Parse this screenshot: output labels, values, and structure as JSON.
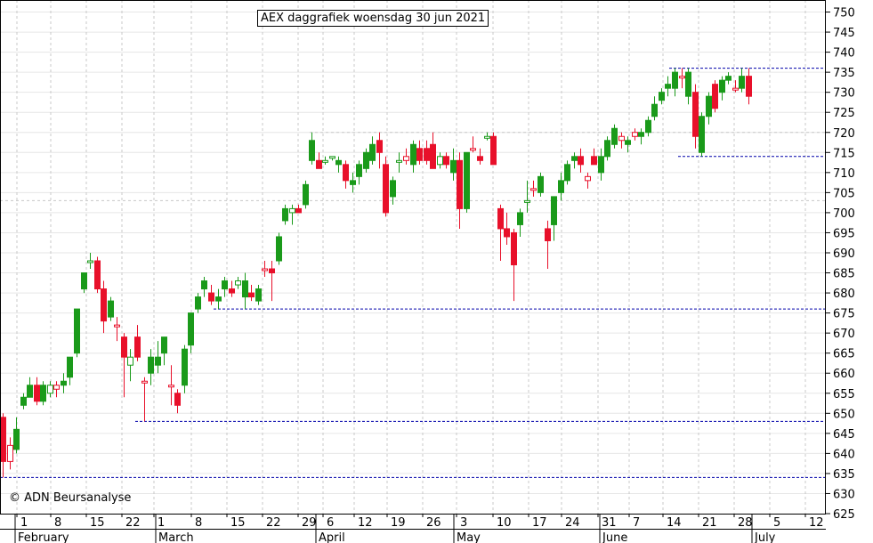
{
  "title": "AEX daggrafiek woensdag 30 jun 2021",
  "copyright": "© ADN Beursanalyse",
  "colors": {
    "up": "#1a9a1a",
    "down": "#e8102a",
    "grid": "#c8c8c8",
    "support": "#0000aa"
  },
  "chart_data": {
    "type": "candlestick",
    "title": "AEX daggrafiek woensdag 30 jun 2021",
    "ylim": [
      625,
      753
    ],
    "y_ticks": [
      625,
      630,
      635,
      640,
      645,
      650,
      655,
      660,
      665,
      670,
      675,
      680,
      685,
      690,
      695,
      700,
      705,
      710,
      715,
      720,
      725,
      730,
      735,
      740,
      745,
      750
    ],
    "x_day_ticks": [
      "1",
      "8",
      "15",
      "22",
      "1",
      "8",
      "15",
      "22",
      "29",
      "6",
      "12",
      "19",
      "26",
      "3",
      "10",
      "17",
      "24",
      "31",
      "7",
      "14",
      "21",
      "28",
      "5",
      "12"
    ],
    "months": [
      "February",
      "March",
      "April",
      "May",
      "June",
      "July"
    ],
    "candles": [
      {
        "o": 649,
        "h": 650,
        "l": 634,
        "c": 638,
        "dir": "down"
      },
      {
        "o": 638,
        "h": 644,
        "l": 636,
        "c": 642,
        "dir": "down"
      },
      {
        "o": 641,
        "h": 649,
        "l": 640,
        "c": 646,
        "dir": "up"
      },
      {
        "o": 652,
        "h": 655,
        "l": 651,
        "c": 654,
        "dir": "up"
      },
      {
        "o": 654,
        "h": 659,
        "l": 654,
        "c": 657,
        "dir": "up"
      },
      {
        "o": 657,
        "h": 659,
        "l": 652,
        "c": 653,
        "dir": "down"
      },
      {
        "o": 653,
        "h": 658,
        "l": 652,
        "c": 657,
        "dir": "up"
      },
      {
        "o": 657,
        "h": 658,
        "l": 654,
        "c": 655,
        "dir": "up"
      },
      {
        "o": 656,
        "h": 658,
        "l": 654,
        "c": 657,
        "dir": "down"
      },
      {
        "o": 657,
        "h": 660,
        "l": 655,
        "c": 658,
        "dir": "up"
      },
      {
        "o": 659,
        "h": 664,
        "l": 657,
        "c": 664,
        "dir": "up"
      },
      {
        "o": 665,
        "h": 676,
        "l": 664,
        "c": 676,
        "dir": "up"
      },
      {
        "o": 681,
        "h": 685,
        "l": 680,
        "c": 685,
        "dir": "up"
      },
      {
        "o": 688,
        "h": 690,
        "l": 686,
        "c": 688,
        "dir": "up"
      },
      {
        "o": 688,
        "h": 689,
        "l": 680,
        "c": 681,
        "dir": "down"
      },
      {
        "o": 681,
        "h": 683,
        "l": 670,
        "c": 673,
        "dir": "down"
      },
      {
        "o": 674,
        "h": 679,
        "l": 673,
        "c": 678,
        "dir": "up"
      },
      {
        "o": 672,
        "h": 674,
        "l": 668,
        "c": 672,
        "dir": "down"
      },
      {
        "o": 669,
        "h": 670,
        "l": 654,
        "c": 664,
        "dir": "down"
      },
      {
        "o": 664,
        "h": 666,
        "l": 658,
        "c": 662,
        "dir": "up"
      },
      {
        "o": 669,
        "h": 672,
        "l": 663,
        "c": 664,
        "dir": "down"
      },
      {
        "o": 658,
        "h": 659,
        "l": 648,
        "c": 658,
        "dir": "down"
      },
      {
        "o": 660,
        "h": 666,
        "l": 657,
        "c": 664,
        "dir": "up"
      },
      {
        "o": 662,
        "h": 668,
        "l": 660,
        "c": 664,
        "dir": "up"
      },
      {
        "o": 665,
        "h": 669,
        "l": 662,
        "c": 669,
        "dir": "up"
      },
      {
        "o": 657,
        "h": 662,
        "l": 652,
        "c": 657,
        "dir": "down"
      },
      {
        "o": 655,
        "h": 656,
        "l": 650,
        "c": 652,
        "dir": "down"
      },
      {
        "o": 657,
        "h": 667,
        "l": 655,
        "c": 666,
        "dir": "up"
      },
      {
        "o": 667,
        "h": 675,
        "l": 665,
        "c": 675,
        "dir": "up"
      },
      {
        "o": 676,
        "h": 680,
        "l": 675,
        "c": 679,
        "dir": "up"
      },
      {
        "o": 681,
        "h": 684,
        "l": 679,
        "c": 683,
        "dir": "up"
      },
      {
        "o": 680,
        "h": 682,
        "l": 677,
        "c": 678,
        "dir": "down"
      },
      {
        "o": 678,
        "h": 681,
        "l": 676,
        "c": 679,
        "dir": "up"
      },
      {
        "o": 681,
        "h": 684,
        "l": 679,
        "c": 683,
        "dir": "up"
      },
      {
        "o": 681,
        "h": 683,
        "l": 679,
        "c": 680,
        "dir": "down"
      },
      {
        "o": 683,
        "h": 684,
        "l": 681,
        "c": 682,
        "dir": "up"
      },
      {
        "o": 679,
        "h": 685,
        "l": 676,
        "c": 683,
        "dir": "up"
      },
      {
        "o": 680,
        "h": 682,
        "l": 678,
        "c": 679,
        "dir": "down"
      },
      {
        "o": 678,
        "h": 682,
        "l": 677,
        "c": 681,
        "dir": "up"
      },
      {
        "o": 686,
        "h": 688,
        "l": 684,
        "c": 686,
        "dir": "down"
      },
      {
        "o": 686,
        "h": 688,
        "l": 678,
        "c": 685,
        "dir": "down"
      },
      {
        "o": 688,
        "h": 695,
        "l": 687,
        "c": 694,
        "dir": "up"
      },
      {
        "o": 698,
        "h": 702,
        "l": 697,
        "c": 701,
        "dir": "up"
      },
      {
        "o": 701,
        "h": 702,
        "l": 697,
        "c": 700,
        "dir": "up"
      },
      {
        "o": 701,
        "h": 702,
        "l": 700,
        "c": 700,
        "dir": "down"
      },
      {
        "o": 702,
        "h": 708,
        "l": 701,
        "c": 707,
        "dir": "up"
      },
      {
        "o": 713,
        "h": 720,
        "l": 712,
        "c": 718,
        "dir": "up"
      },
      {
        "o": 713,
        "h": 715,
        "l": 711,
        "c": 711,
        "dir": "down"
      },
      {
        "o": 713,
        "h": 714,
        "l": 712,
        "c": 713,
        "dir": "up"
      },
      {
        "o": 714,
        "h": 714,
        "l": 713,
        "c": 714,
        "dir": "up"
      },
      {
        "o": 712,
        "h": 714,
        "l": 710,
        "c": 713,
        "dir": "up"
      },
      {
        "o": 712,
        "h": 713,
        "l": 706,
        "c": 708,
        "dir": "down"
      },
      {
        "o": 707,
        "h": 710,
        "l": 705,
        "c": 708,
        "dir": "up"
      },
      {
        "o": 709,
        "h": 713,
        "l": 707,
        "c": 712,
        "dir": "up"
      },
      {
        "o": 711,
        "h": 716,
        "l": 710,
        "c": 715,
        "dir": "up"
      },
      {
        "o": 713,
        "h": 719,
        "l": 712,
        "c": 717,
        "dir": "up"
      },
      {
        "o": 718,
        "h": 720,
        "l": 711,
        "c": 715,
        "dir": "down"
      },
      {
        "o": 712,
        "h": 714,
        "l": 699,
        "c": 700,
        "dir": "down"
      },
      {
        "o": 704,
        "h": 709,
        "l": 702,
        "c": 708,
        "dir": "up"
      },
      {
        "o": 713,
        "h": 715,
        "l": 710,
        "c": 713,
        "dir": "up"
      },
      {
        "o": 713,
        "h": 716,
        "l": 712,
        "c": 714,
        "dir": "down"
      },
      {
        "o": 712,
        "h": 718,
        "l": 710,
        "c": 717,
        "dir": "up"
      },
      {
        "o": 716,
        "h": 718,
        "l": 712,
        "c": 713,
        "dir": "down"
      },
      {
        "o": 716,
        "h": 718,
        "l": 712,
        "c": 713,
        "dir": "down"
      },
      {
        "o": 717,
        "h": 720,
        "l": 711,
        "c": 711,
        "dir": "down"
      },
      {
        "o": 714,
        "h": 715,
        "l": 711,
        "c": 712,
        "dir": "up"
      },
      {
        "o": 714,
        "h": 715,
        "l": 711,
        "c": 712,
        "dir": "down"
      },
      {
        "o": 710,
        "h": 716,
        "l": 708,
        "c": 713,
        "dir": "up"
      },
      {
        "o": 713,
        "h": 715,
        "l": 696,
        "c": 701,
        "dir": "down"
      },
      {
        "o": 701,
        "h": 715,
        "l": 700,
        "c": 715,
        "dir": "up"
      },
      {
        "o": 716,
        "h": 719,
        "l": 715,
        "c": 716,
        "dir": "down"
      },
      {
        "o": 714,
        "h": 716,
        "l": 712,
        "c": 713,
        "dir": "down"
      },
      {
        "o": 719,
        "h": 720,
        "l": 718,
        "c": 719,
        "dir": "up"
      },
      {
        "o": 719,
        "h": 720,
        "l": 712,
        "c": 712,
        "dir": "down"
      },
      {
        "o": 701,
        "h": 702,
        "l": 688,
        "c": 696,
        "dir": "down"
      },
      {
        "o": 696,
        "h": 700,
        "l": 692,
        "c": 694,
        "dir": "down"
      },
      {
        "o": 695,
        "h": 696,
        "l": 678,
        "c": 687,
        "dir": "down"
      },
      {
        "o": 697,
        "h": 701,
        "l": 694,
        "c": 700,
        "dir": "up"
      },
      {
        "o": 703,
        "h": 708,
        "l": 700,
        "c": 703,
        "dir": "up"
      },
      {
        "o": 706,
        "h": 708,
        "l": 704,
        "c": 706,
        "dir": "down"
      },
      {
        "o": 705,
        "h": 710,
        "l": 704,
        "c": 709,
        "dir": "up"
      },
      {
        "o": 696,
        "h": 698,
        "l": 686,
        "c": 693,
        "dir": "down"
      },
      {
        "o": 697,
        "h": 704,
        "l": 693,
        "c": 704,
        "dir": "up"
      },
      {
        "o": 705,
        "h": 710,
        "l": 703,
        "c": 708,
        "dir": "up"
      },
      {
        "o": 708,
        "h": 713,
        "l": 707,
        "c": 712,
        "dir": "up"
      },
      {
        "o": 713,
        "h": 715,
        "l": 711,
        "c": 714,
        "dir": "up"
      },
      {
        "o": 714,
        "h": 716,
        "l": 710,
        "c": 712,
        "dir": "down"
      },
      {
        "o": 708,
        "h": 710,
        "l": 706,
        "c": 709,
        "dir": "down"
      },
      {
        "o": 714,
        "h": 716,
        "l": 712,
        "c": 712,
        "dir": "down"
      },
      {
        "o": 710,
        "h": 716,
        "l": 708,
        "c": 714,
        "dir": "up"
      },
      {
        "o": 714,
        "h": 719,
        "l": 713,
        "c": 718,
        "dir": "up"
      },
      {
        "o": 717,
        "h": 722,
        "l": 716,
        "c": 721,
        "dir": "up"
      },
      {
        "o": 718,
        "h": 720,
        "l": 716,
        "c": 719,
        "dir": "down"
      },
      {
        "o": 717,
        "h": 719,
        "l": 715,
        "c": 718,
        "dir": "up"
      },
      {
        "o": 719,
        "h": 721,
        "l": 718,
        "c": 720,
        "dir": "down"
      },
      {
        "o": 719,
        "h": 721,
        "l": 717,
        "c": 720,
        "dir": "up"
      },
      {
        "o": 720,
        "h": 724,
        "l": 719,
        "c": 723,
        "dir": "up"
      },
      {
        "o": 724,
        "h": 729,
        "l": 723,
        "c": 727,
        "dir": "up"
      },
      {
        "o": 728,
        "h": 731,
        "l": 727,
        "c": 730,
        "dir": "up"
      },
      {
        "o": 731,
        "h": 734,
        "l": 729,
        "c": 732,
        "dir": "up"
      },
      {
        "o": 731,
        "h": 736,
        "l": 729,
        "c": 735,
        "dir": "up"
      },
      {
        "o": 734,
        "h": 736,
        "l": 731,
        "c": 734,
        "dir": "down"
      },
      {
        "o": 729,
        "h": 736,
        "l": 727,
        "c": 735,
        "dir": "up"
      },
      {
        "o": 730,
        "h": 732,
        "l": 716,
        "c": 719,
        "dir": "down"
      },
      {
        "o": 715,
        "h": 725,
        "l": 714,
        "c": 724,
        "dir": "up"
      },
      {
        "o": 724,
        "h": 730,
        "l": 722,
        "c": 729,
        "dir": "up"
      },
      {
        "o": 732,
        "h": 733,
        "l": 725,
        "c": 726,
        "dir": "down"
      },
      {
        "o": 730,
        "h": 734,
        "l": 728,
        "c": 733,
        "dir": "up"
      },
      {
        "o": 733,
        "h": 735,
        "l": 732,
        "c": 734,
        "dir": "up"
      },
      {
        "o": 731,
        "h": 733,
        "l": 730,
        "c": 731,
        "dir": "down"
      },
      {
        "o": 731,
        "h": 736,
        "l": 730,
        "c": 734,
        "dir": "up"
      },
      {
        "o": 734,
        "h": 736,
        "l": 727,
        "c": 729,
        "dir": "down"
      }
    ],
    "support_lines": [
      {
        "y": 736,
        "from": "mid-June",
        "to": "end"
      },
      {
        "y": 714,
        "from": "late June",
        "to": "end"
      },
      {
        "y": 676,
        "from": "mid-March",
        "to": "end"
      },
      {
        "y": 648,
        "from": "late February",
        "to": "end"
      },
      {
        "y": 634,
        "from": "start",
        "to": "end"
      },
      {
        "y": 703,
        "from": "start",
        "to": "end",
        "style": "grid-h"
      },
      {
        "y": 720,
        "from": "April",
        "to": "end",
        "style": "grid-h"
      }
    ]
  }
}
